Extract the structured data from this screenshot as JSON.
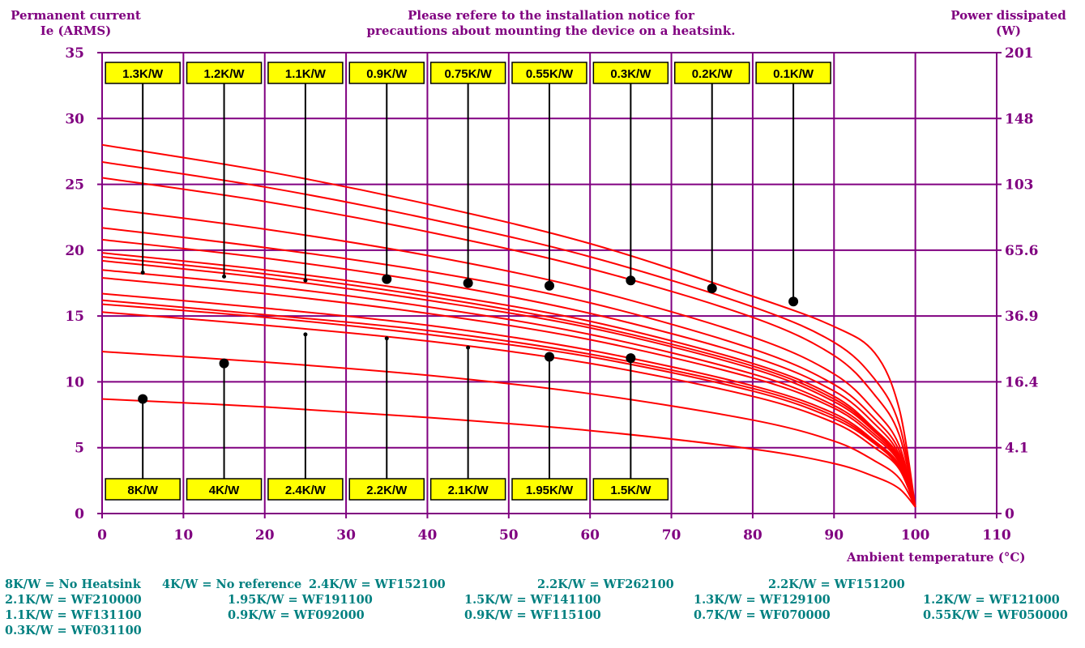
{
  "header": {
    "left_line1": "Permanent current",
    "left_line2": "Ie (ARMS)",
    "center_line1": "Please refere to the installation notice for",
    "center_line2": "precautions about mounting the device on a heatsink.",
    "right_line1": "Power dissipated",
    "right_line2": "(W)"
  },
  "colors": {
    "grid": "#800080",
    "curve": "#ff0000",
    "label_bg": "#ffff00",
    "legend": "#008080",
    "axis_text": "#800080"
  },
  "chart_data": {
    "type": "line",
    "xlabel": "Ambient temperature (°C)",
    "ylabel_left": "Permanent current Ie (ARMS)",
    "ylabel_right": "Power dissipated (W)",
    "xlim": [
      0,
      110
    ],
    "ylim": [
      0,
      35
    ],
    "x_ticks": [
      "0",
      "10",
      "20",
      "30",
      "40",
      "50",
      "60",
      "70",
      "80",
      "90",
      "100",
      "110"
    ],
    "y_ticks": [
      "0",
      "5",
      "10",
      "15",
      "20",
      "25",
      "30",
      "35"
    ],
    "y_right_ticks": [
      "0",
      "4.1",
      "16.4",
      "36.9",
      "65.6",
      "103",
      "148",
      "201"
    ],
    "grid": true,
    "series": [
      {
        "name": "0.1K/W",
        "x": [
          0,
          20,
          40,
          60,
          80,
          90,
          95,
          98,
          100
        ],
        "y": [
          28.0,
          26.0,
          23.5,
          20.5,
          16.5,
          14.2,
          12.2,
          8.0,
          0.5
        ]
      },
      {
        "name": "0.2K/W",
        "x": [
          0,
          20,
          40,
          60,
          80,
          90,
          95,
          98,
          100
        ],
        "y": [
          26.7,
          24.8,
          22.4,
          19.5,
          15.7,
          13.0,
          10.2,
          6.8,
          0.5
        ]
      },
      {
        "name": "0.3K/W",
        "x": [
          0,
          20,
          40,
          60,
          80,
          90,
          95,
          98,
          100
        ],
        "y": [
          25.5,
          23.7,
          21.4,
          18.6,
          14.9,
          12.0,
          9.0,
          6.0,
          0.5
        ]
      },
      {
        "name": "0.55K/W",
        "x": [
          0,
          20,
          40,
          60,
          80,
          90,
          95,
          98,
          100
        ],
        "y": [
          23.2,
          21.6,
          19.6,
          17.0,
          13.4,
          10.6,
          7.8,
          5.2,
          0.5
        ]
      },
      {
        "name": "0.75K/W",
        "x": [
          0,
          20,
          40,
          60,
          80,
          90,
          95,
          98,
          100
        ],
        "y": [
          21.7,
          20.2,
          18.4,
          16.0,
          12.5,
          9.8,
          7.2,
          4.8,
          0.5
        ]
      },
      {
        "name": "0.9K/W",
        "x": [
          0,
          20,
          40,
          60,
          80,
          90,
          95,
          98,
          100
        ],
        "y": [
          20.8,
          19.4,
          17.6,
          15.2,
          11.9,
          9.3,
          6.8,
          4.5,
          0.5
        ]
      },
      {
        "name": "1.1K/W",
        "x": [
          0,
          20,
          40,
          60,
          80,
          90,
          95,
          98,
          100
        ],
        "y": [
          19.8,
          18.5,
          16.8,
          14.6,
          11.4,
          8.9,
          6.4,
          4.3,
          0.5
        ]
      },
      {
        "name": "1.2K/W",
        "x": [
          0,
          20,
          40,
          60,
          80,
          90,
          95,
          98,
          100
        ],
        "y": [
          19.5,
          18.2,
          16.5,
          14.3,
          11.2,
          8.7,
          6.3,
          4.2,
          0.5
        ]
      },
      {
        "name": "1.3K/W",
        "x": [
          0,
          20,
          40,
          60,
          80,
          90,
          95,
          98,
          100
        ],
        "y": [
          19.2,
          17.9,
          16.2,
          14.1,
          11.0,
          8.5,
          6.2,
          4.1,
          0.5
        ]
      },
      {
        "name": "1.5K/W",
        "x": [
          0,
          20,
          40,
          60,
          80,
          90,
          95,
          98,
          100
        ],
        "y": [
          18.5,
          17.3,
          15.7,
          13.6,
          10.6,
          8.2,
          6.0,
          4.0,
          0.5
        ]
      },
      {
        "name": "1.95K/W",
        "x": [
          0,
          20,
          40,
          60,
          80,
          90,
          95,
          98,
          100
        ],
        "y": [
          17.9,
          16.7,
          15.2,
          13.2,
          10.3,
          8.0,
          5.8,
          3.9,
          0.5
        ]
      },
      {
        "name": "2.1K/W",
        "x": [
          0,
          20,
          40,
          60,
          80,
          90,
          95,
          98,
          100
        ],
        "y": [
          16.7,
          15.6,
          14.3,
          12.4,
          9.7,
          7.6,
          5.5,
          3.7,
          0.5
        ]
      },
      {
        "name": "2.2K/W",
        "x": [
          0,
          20,
          40,
          60,
          80,
          90,
          95,
          98,
          100
        ],
        "y": [
          16.2,
          15.1,
          13.9,
          12.1,
          9.5,
          7.4,
          5.4,
          3.6,
          0.5
        ]
      },
      {
        "name": "2.2K/W",
        "x": [
          0,
          20,
          40,
          60,
          80,
          90,
          95,
          98,
          100
        ],
        "y": [
          15.9,
          14.9,
          13.6,
          11.9,
          9.3,
          7.2,
          5.3,
          3.5,
          0.5
        ]
      },
      {
        "name": "2.4K/W",
        "x": [
          0,
          20,
          40,
          60,
          80,
          90,
          95,
          98,
          100
        ],
        "y": [
          15.3,
          14.3,
          13.1,
          11.4,
          8.9,
          6.9,
          5.0,
          3.4,
          0.5
        ]
      },
      {
        "name": "4K/W",
        "x": [
          0,
          20,
          40,
          60,
          80,
          90,
          95,
          98,
          100
        ],
        "y": [
          12.3,
          11.5,
          10.5,
          9.1,
          7.1,
          5.5,
          4.0,
          2.7,
          0.5
        ]
      },
      {
        "name": "8K/W",
        "x": [
          0,
          20,
          40,
          60,
          80,
          90,
          95,
          98,
          100
        ],
        "y": [
          8.7,
          8.1,
          7.3,
          6.3,
          4.9,
          3.8,
          2.8,
          1.9,
          0.5
        ]
      }
    ],
    "top_callouts": [
      {
        "label": "1.3K/W",
        "x": 5,
        "y": 18.3,
        "dot": "small"
      },
      {
        "label": "1.2K/W",
        "x": 15,
        "y": 18.0,
        "dot": "small"
      },
      {
        "label": "1.1K/W",
        "x": 25,
        "y": 17.7,
        "dot": "small"
      },
      {
        "label": "0.9K/W",
        "x": 35,
        "y": 17.8,
        "dot": "large"
      },
      {
        "label": "0.75K/W",
        "x": 45,
        "y": 17.5,
        "dot": "large"
      },
      {
        "label": "0.55K/W",
        "x": 55,
        "y": 17.3,
        "dot": "large"
      },
      {
        "label": "0.3K/W",
        "x": 65,
        "y": 17.7,
        "dot": "large"
      },
      {
        "label": "0.2K/W",
        "x": 75,
        "y": 17.1,
        "dot": "large"
      },
      {
        "label": "0.1K/W",
        "x": 85,
        "y": 16.1,
        "dot": "large"
      }
    ],
    "bottom_callouts": [
      {
        "label": "8K/W",
        "x": 5,
        "y": 8.7,
        "dot": "large"
      },
      {
        "label": "4K/W",
        "x": 15,
        "y": 11.4,
        "dot": "large"
      },
      {
        "label": "2.4K/W",
        "x": 25,
        "y": 13.6,
        "dot": "small"
      },
      {
        "label": "2.2K/W",
        "x": 35,
        "y": 13.3,
        "dot": "small"
      },
      {
        "label": "2.1K/W",
        "x": 45,
        "y": 12.6,
        "dot": "small"
      },
      {
        "label": "1.95K/W",
        "x": 55,
        "y": 11.9,
        "dot": "large"
      },
      {
        "label": "1.5K/W",
        "x": 65,
        "y": 11.8,
        "dot": "large"
      }
    ]
  },
  "legend_rows": [
    [
      "8K/W = No Heatsink",
      "4K/W = No reference",
      "2.4K/W = WF152100",
      "2.2K/W = WF262100",
      "2.2K/W = WF151200"
    ],
    [
      "2.1K/W = WF210000",
      "1.95K/W = WF191100",
      "1.5K/W = WF141100",
      "1.3K/W = WF129100",
      "1.2K/W = WF121000"
    ],
    [
      "1.1K/W = WF131100",
      "0.9K/W = WF092000",
      "0.9K/W = WF115100",
      "0.7K/W = WF070000",
      "0.55K/W = WF050000"
    ],
    [
      "0.3K/W = WF031100"
    ]
  ]
}
